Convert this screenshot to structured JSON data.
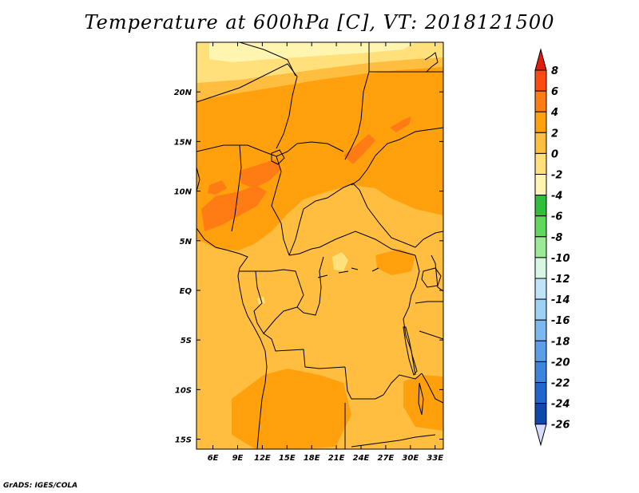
{
  "title": "Temperature at 600hPa [C], VT: 2018121500",
  "credit": "GrADS: IGES/COLA",
  "map": {
    "lon_range": [
      4,
      34
    ],
    "lat_range": [
      -16,
      25
    ],
    "x_ticks": [
      {
        "lon": 6,
        "label": "6E"
      },
      {
        "lon": 9,
        "label": "9E"
      },
      {
        "lon": 12,
        "label": "12E"
      },
      {
        "lon": 15,
        "label": "15E"
      },
      {
        "lon": 18,
        "label": "18E"
      },
      {
        "lon": 21,
        "label": "21E"
      },
      {
        "lon": 24,
        "label": "24E"
      },
      {
        "lon": 27,
        "label": "27E"
      },
      {
        "lon": 30,
        "label": "30E"
      },
      {
        "lon": 33,
        "label": "33E"
      }
    ],
    "y_ticks": [
      {
        "lat": 20,
        "label": "20N"
      },
      {
        "lat": 15,
        "label": "15N"
      },
      {
        "lat": 10,
        "label": "10N"
      },
      {
        "lat": 5,
        "label": "5N"
      },
      {
        "lat": 0,
        "label": "EQ"
      },
      {
        "lat": -5,
        "label": "5S"
      },
      {
        "lat": -10,
        "label": "10S"
      },
      {
        "lat": -15,
        "label": "15S"
      }
    ]
  },
  "colorbar": {
    "levels": [
      "8",
      "6",
      "4",
      "2",
      "0",
      "-2",
      "-4",
      "-6",
      "-8",
      "-10",
      "-12",
      "-14",
      "-16",
      "-18",
      "-20",
      "-22",
      "-24",
      "-26"
    ],
    "colors": [
      "#e21c0c",
      "#ff4a10",
      "#ff7c14",
      "#ffa00c",
      "#ffbe40",
      "#ffe07a",
      "#fff4b0",
      "#2fbf3a",
      "#5fd85c",
      "#9beb96",
      "#d6f7e2",
      "#bfe3f7",
      "#9ed2f3",
      "#7ab8ee",
      "#5aa0e8",
      "#3c84dc",
      "#2066cc",
      "#0d49a8",
      "#062a78"
    ],
    "top_arrow_color": "#e21c0c",
    "bottom_arrow_color": "#d6dcff"
  }
}
